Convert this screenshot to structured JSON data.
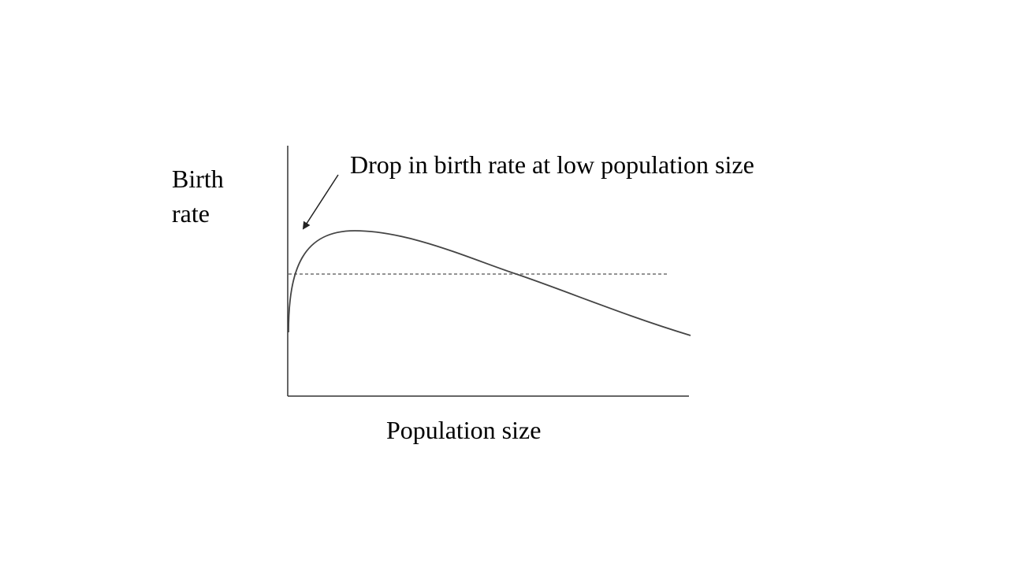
{
  "diagram": {
    "y_axis_label_line1": "Birth",
    "y_axis_label_line2": "rate",
    "x_axis_label": "Population size",
    "annotation": "Drop in birth rate at low population size",
    "colors": {
      "curve": "#444444",
      "axes": "#333333",
      "reference_line": "#555555",
      "text": "#000000"
    }
  }
}
